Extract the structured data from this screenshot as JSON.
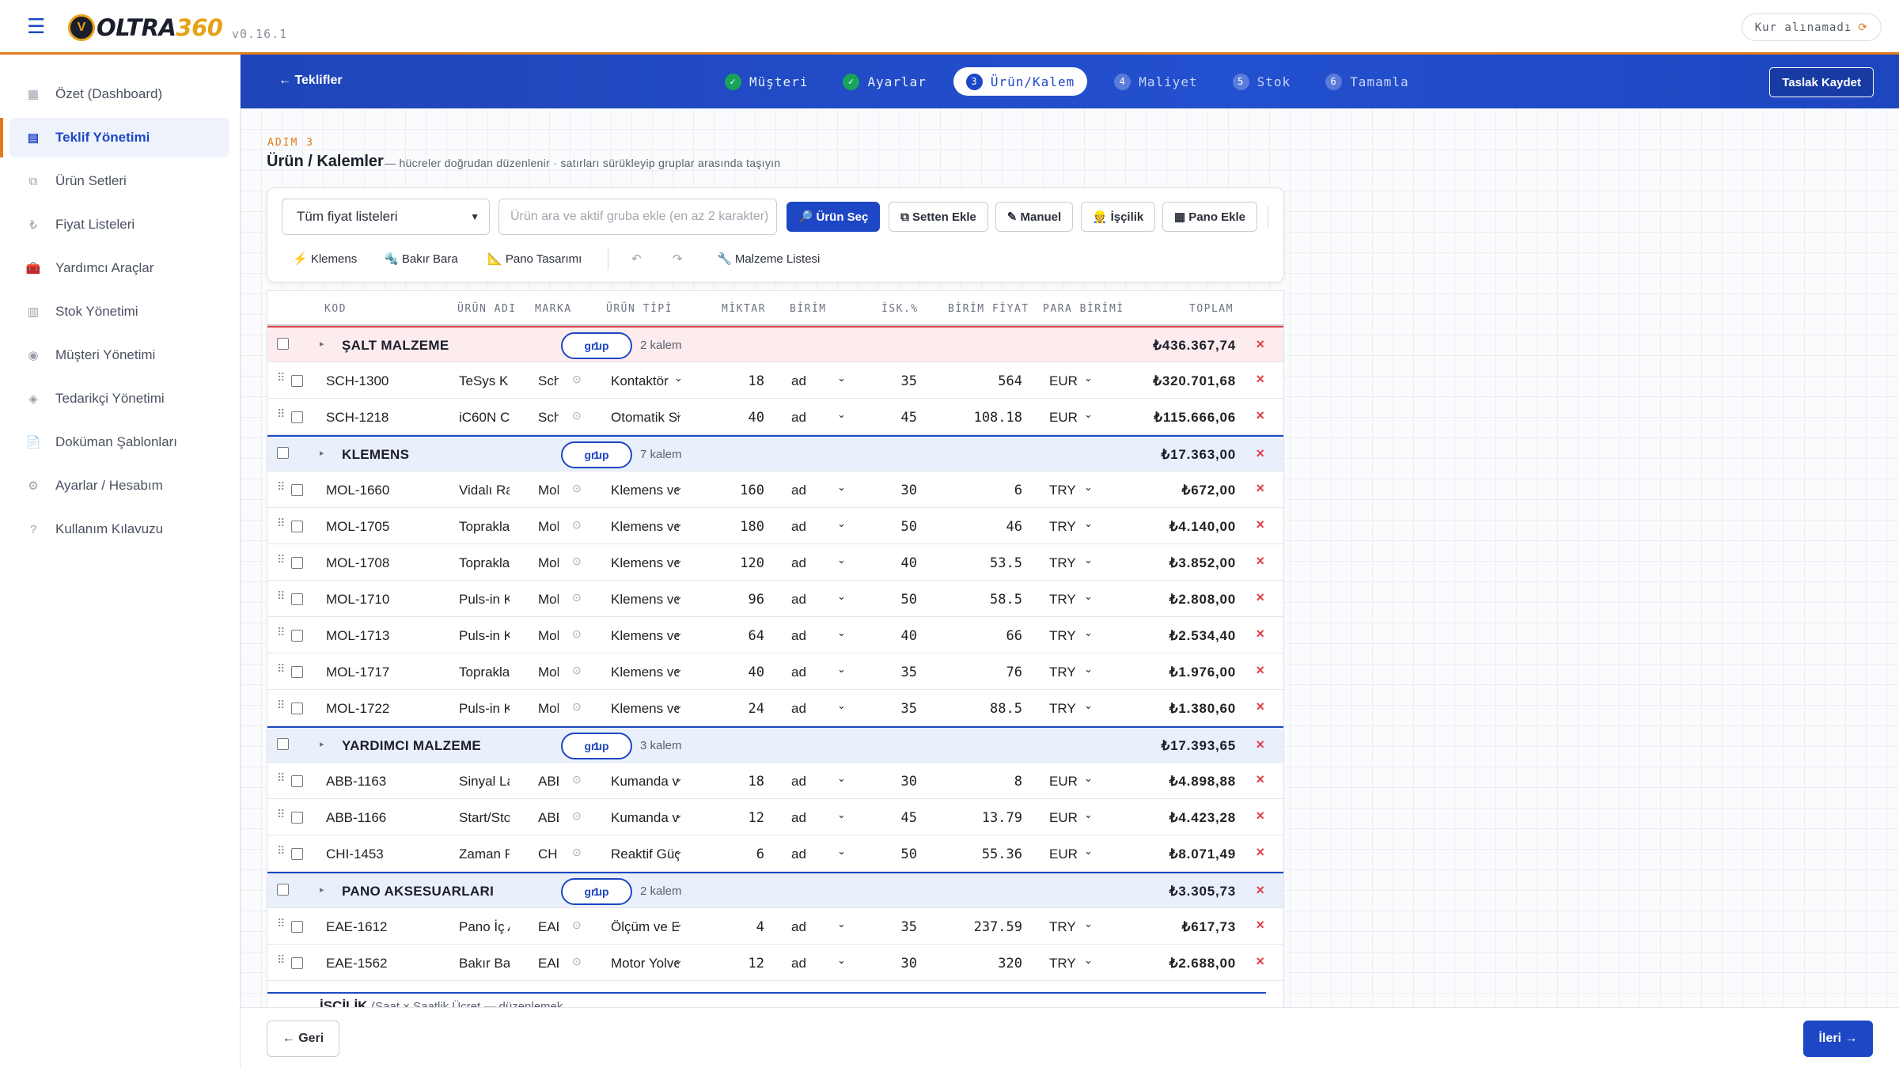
{
  "app": {
    "version": "v0.16.1",
    "logo_main": "OLTRA",
    "logo_accent": "360",
    "kur_status": "Kur alınamadı",
    "colors": {
      "brand": "#1d47c4",
      "accent": "#e07b1a",
      "danger": "#e0404a",
      "success": "#18a35b"
    }
  },
  "sidebar": {
    "items": [
      {
        "label": "Özet (Dashboard)",
        "icon": "dashboard-icon"
      },
      {
        "label": "Teklif Yönetimi",
        "icon": "document-icon",
        "active": true
      },
      {
        "label": "Ürün Setleri",
        "icon": "layers-icon"
      },
      {
        "label": "Fiyat Listeleri",
        "icon": "lira-icon"
      },
      {
        "label": "Yardımcı Araçlar",
        "icon": "toolbox-icon"
      },
      {
        "label": "Stok Yönetimi",
        "icon": "box-icon"
      },
      {
        "label": "Müşteri Yönetimi",
        "icon": "user-icon"
      },
      {
        "label": "Tedarikçi Yönetimi",
        "icon": "truck-icon"
      },
      {
        "label": "Doküman Şablonları",
        "icon": "file-icon"
      },
      {
        "label": "Ayarlar / Hesabım",
        "icon": "gear-icon"
      },
      {
        "label": "Kullanım Kılavuzu",
        "icon": "help-icon"
      }
    ]
  },
  "stepper": {
    "back_label": "← Teklifler",
    "save_label": "Taslak Kaydet",
    "steps": [
      {
        "num": "✓",
        "label": "Müşteri",
        "state": "done"
      },
      {
        "num": "✓",
        "label": "Ayarlar",
        "state": "done"
      },
      {
        "num": "3",
        "label": "Ürün/Kalem",
        "state": "current"
      },
      {
        "num": "4",
        "label": "Maliyet",
        "state": "todo"
      },
      {
        "num": "5",
        "label": "Stok",
        "state": "todo"
      },
      {
        "num": "6",
        "label": "Tamamla",
        "state": "todo"
      }
    ]
  },
  "page": {
    "step_label": "ADIM 3",
    "title": "Ürün / Kalemler",
    "subtitle": "— hücreler doğrudan düzenlenir · satırları sürükleyip gruplar arasında taşıyın"
  },
  "toolbar": {
    "price_list": "Tüm fiyat listeleri",
    "search_placeholder": "Ürün ara ve aktif gruba ekle (en az 2 karakter)",
    "buttons": {
      "urun_sec": "🔎 Ürün Seç",
      "setten": "⧉ Setten Ekle",
      "manuel": "✎ Manuel",
      "iscilik": "👷 İşçilik",
      "pano": "▦ Pano Ekle"
    },
    "links": {
      "klemens": "⚡ Klemens",
      "bakir": "🔩 Bakır Bara",
      "pano": "📐 Pano Tasarımı",
      "undo": "↶",
      "redo": "↷",
      "malzeme": "🔧 Malzeme Listesi"
    }
  },
  "table": {
    "headers": [
      "KOD",
      "ÜRÜN ADI",
      "MARKA",
      "ÜRÜN TİPİ",
      "MİKTAR",
      "BİRİM",
      "İSK.%",
      "BİRİM FİYAT",
      "PARA BİRİMİ",
      "TOPLAM"
    ],
    "group_pill": "grup",
    "group_pill_num": "1",
    "groups": [
      {
        "name": "ŞALT MALZEME",
        "count": "2 kalem",
        "total": "₺436.367,74",
        "items": [
          {
            "kod": "SCH-1300",
            "ad": "TeSys K",
            "marka": "Schneider",
            "tip": "Kontaktör",
            "miktar": "18",
            "birim": "ad",
            "isk": "35",
            "fiyat": "564",
            "para": "EUR",
            "toplam": "₺320.701,68"
          },
          {
            "kod": "SCH-1218",
            "ad": "iC60N C",
            "marka": "Schneider",
            "tip": "Otomatik Sigorta",
            "miktar": "40",
            "birim": "ad",
            "isk": "45",
            "fiyat": "108.18",
            "para": "EUR",
            "toplam": "₺115.666,06"
          }
        ]
      },
      {
        "name": "KLEMENS",
        "count": "7 kalem",
        "total": "₺17.363,00",
        "items": [
          {
            "kod": "MOL-1660",
            "ad": "Vidalı Ray Klemensi",
            "marka": "Mohlenhoff",
            "tip": "Klemens ve Aksesuar",
            "miktar": "160",
            "birim": "ad",
            "isk": "30",
            "fiyat": "6",
            "para": "TRY",
            "toplam": "₺672,00"
          },
          {
            "kod": "MOL-1705",
            "ad": "Topraklama Klemensi",
            "marka": "Mohlenhoff",
            "tip": "Klemens ve Aksesuar",
            "miktar": "180",
            "birim": "ad",
            "isk": "50",
            "fiyat": "46",
            "para": "TRY",
            "toplam": "₺4.140,00"
          },
          {
            "kod": "MOL-1708",
            "ad": "Topraklama Klemensi",
            "marka": "Mohlenhoff",
            "tip": "Klemens ve Aksesuar",
            "miktar": "120",
            "birim": "ad",
            "isk": "40",
            "fiyat": "53.5",
            "para": "TRY",
            "toplam": "₺3.852,00"
          },
          {
            "kod": "MOL-1710",
            "ad": "Puls-in Klemens",
            "marka": "Mohlenhoff",
            "tip": "Klemens ve Aksesuar",
            "miktar": "96",
            "birim": "ad",
            "isk": "50",
            "fiyat": "58.5",
            "para": "TRY",
            "toplam": "₺2.808,00"
          },
          {
            "kod": "MOL-1713",
            "ad": "Puls-in Klemens",
            "marka": "Mohlenhoff",
            "tip": "Klemens ve Aksesuar",
            "miktar": "64",
            "birim": "ad",
            "isk": "40",
            "fiyat": "66",
            "para": "TRY",
            "toplam": "₺2.534,40"
          },
          {
            "kod": "MOL-1717",
            "ad": "Topraklama Klemensi",
            "marka": "Mohlenhoff",
            "tip": "Klemens ve Aksesuar",
            "miktar": "40",
            "birim": "ad",
            "isk": "35",
            "fiyat": "76",
            "para": "TRY",
            "toplam": "₺1.976,00"
          },
          {
            "kod": "MOL-1722",
            "ad": "Puls-in Klemens",
            "marka": "Mohlenhoff",
            "tip": "Klemens ve Aksesuar",
            "miktar": "24",
            "birim": "ad",
            "isk": "35",
            "fiyat": "88.5",
            "para": "TRY",
            "toplam": "₺1.380,60"
          }
        ]
      },
      {
        "name": "YARDIMCI MALZEME",
        "count": "3 kalem",
        "total": "₺17.393,65",
        "items": [
          {
            "kod": "ABB-1163",
            "ad": "Sinyal Lambası",
            "marka": "ABB",
            "tip": "Kumanda ve Sinyal",
            "miktar": "18",
            "birim": "ad",
            "isk": "30",
            "fiyat": "8",
            "para": "EUR",
            "toplam": "₺4.898,88"
          },
          {
            "kod": "ABB-1166",
            "ad": "Start/Stop Buton",
            "marka": "ABB",
            "tip": "Kumanda ve Sinyal",
            "miktar": "12",
            "birim": "ad",
            "isk": "45",
            "fiyat": "13.79",
            "para": "EUR",
            "toplam": "₺4.423,28"
          },
          {
            "kod": "CHI-1453",
            "ad": "Zaman Rölesi",
            "marka": "CHINT",
            "tip": "Reaktif Güç",
            "miktar": "6",
            "birim": "ad",
            "isk": "50",
            "fiyat": "55.36",
            "para": "EUR",
            "toplam": "₺8.071,49"
          }
        ]
      },
      {
        "name": "PANO AKSESUARLARI",
        "count": "2 kalem",
        "total": "₺3.305,73",
        "items": [
          {
            "kod": "EAE-1612",
            "ad": "Pano İç Aydınlatma",
            "marka": "EAE",
            "tip": "Ölçüm ve Enerji",
            "miktar": "4",
            "birim": "ad",
            "isk": "35",
            "fiyat": "237.59",
            "para": "TRY",
            "toplam": "₺617,73"
          },
          {
            "kod": "EAE-1562",
            "ad": "Bakır Bara Tutucu",
            "marka": "EAE",
            "tip": "Motor Yolverici",
            "miktar": "12",
            "birim": "ad",
            "isk": "30",
            "fiyat": "320",
            "para": "TRY",
            "toplam": "₺2.688,00"
          }
        ]
      }
    ],
    "iscilik_title": "İŞÇİLİK",
    "iscilik_note": "(Saat × Saatlik Ücret — düzenlemek"
  },
  "footer": {
    "back_label": "← Geri",
    "next_label": "İleri →"
  }
}
